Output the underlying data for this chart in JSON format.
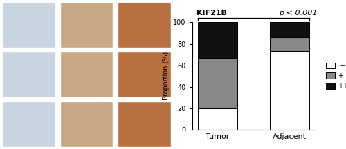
{
  "categories": [
    "Tumor",
    "Adjacent"
  ],
  "neg_plus": [
    20,
    73
  ],
  "plus": [
    47,
    13
  ],
  "plus_plus": [
    33,
    14
  ],
  "colors": {
    "neg_plus": "#ffffff",
    "plus": "#888888",
    "plus_plus": "#111111"
  },
  "ylabel": "Proportion (%)",
  "ylim": [
    0,
    100
  ],
  "yticks": [
    0,
    20,
    40,
    60,
    80,
    100
  ],
  "title": "KIF21B",
  "pvalue": "p < 0.001",
  "legend_labels": [
    "-+",
    "+",
    "++"
  ],
  "bar_width": 0.55,
  "edgecolor": "#000000"
}
